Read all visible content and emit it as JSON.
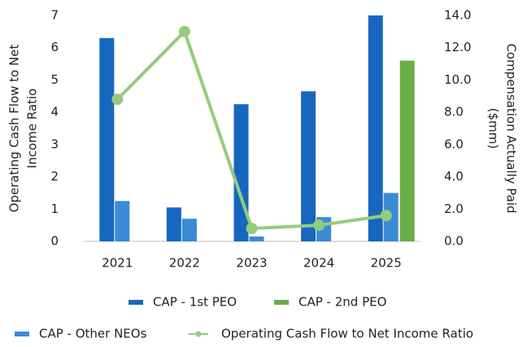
{
  "chart_data": {
    "type": "bar",
    "categories": [
      "2021",
      "2022",
      "2023",
      "2024",
      "2025"
    ],
    "y_label": [
      "Operating Cash Flow to Net",
      "Income Ratio"
    ],
    "y2_label": [
      "Compensation Actually Paid",
      "($mm)"
    ],
    "ylim": [
      0,
      7
    ],
    "yticks": [
      0,
      1,
      2,
      3,
      4,
      5,
      6,
      7
    ],
    "y2lim": [
      0,
      14
    ],
    "y2ticks": [
      {
        "value": 0,
        "label": "0.0"
      },
      {
        "value": 2,
        "label": "2.0"
      },
      {
        "value": 4,
        "label": "4.0"
      },
      {
        "value": 6,
        "label": "6.0"
      },
      {
        "value": 8,
        "label": "8.0"
      },
      {
        "value": 10,
        "label": "10.0"
      },
      {
        "value": 12,
        "label": "12.0"
      },
      {
        "value": 14,
        "label": "14.0"
      }
    ],
    "series": [
      {
        "name": "CAP - 1st PEO",
        "color": "#1767c0",
        "axis": "y2",
        "values": [
          12.6,
          2.1,
          8.5,
          9.3,
          14.0
        ]
      },
      {
        "name": "CAP - 2nd PEO",
        "color": "#6aad48",
        "axis": "y2",
        "values": [
          null,
          null,
          null,
          null,
          11.2
        ]
      },
      {
        "name": "CAP - Other NEOs",
        "color": "#3a8ad6",
        "axis": "y2",
        "values": [
          2.5,
          1.4,
          0.3,
          1.5,
          3.0
        ]
      },
      {
        "name": "Operating Cash Flow to Net Income Ratio",
        "color": "#93cc7c",
        "type": "line",
        "values": [
          4.4,
          6.5,
          0.4,
          0.5,
          0.8
        ]
      }
    ]
  }
}
